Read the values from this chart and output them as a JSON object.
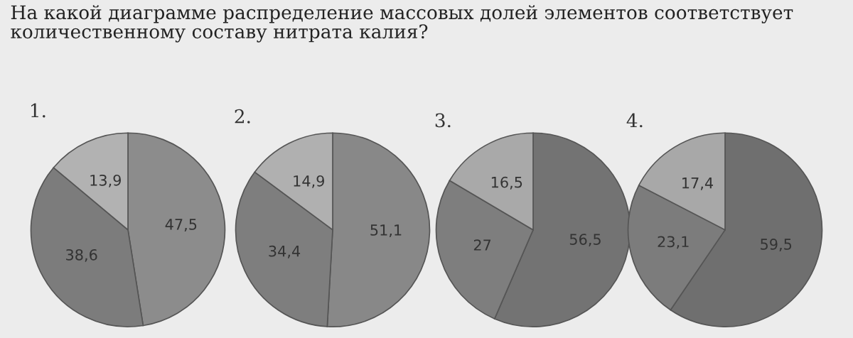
{
  "chart_data": [
    {
      "type": "other",
      "title": "На какой диаграмме распределение массовых долей элементов соответствует\nколичественному составу нитрата калия?"
    },
    {
      "type": "pie",
      "title": "1.",
      "categories": [
        null,
        null,
        null
      ],
      "values": [
        47.5,
        38.6,
        13.9
      ],
      "value_labels": [
        "47,5",
        "38,6",
        "13,9"
      ],
      "colors": [
        "#8c8c8c",
        "#7c7c7c",
        "#b2b2b2"
      ]
    },
    {
      "type": "pie",
      "title": "2.",
      "categories": [
        null,
        null,
        null
      ],
      "values": [
        51.1,
        34.4,
        14.9
      ],
      "value_labels": [
        "51,1",
        "34,4",
        "14,9"
      ],
      "colors": [
        "#888888",
        "#7e7e7e",
        "#b0b0b0"
      ]
    },
    {
      "type": "pie",
      "title": "3.",
      "categories": [
        null,
        null,
        null
      ],
      "values": [
        56.5,
        27,
        16.5
      ],
      "value_labels": [
        "56,5",
        "27",
        "16,5"
      ],
      "colors": [
        "#737373",
        "#7e7e7e",
        "#a9a9a9"
      ]
    },
    {
      "type": "pie",
      "title": "4.",
      "categories": [
        null,
        null,
        null
      ],
      "values": [
        59.5,
        23.1,
        17.4
      ],
      "value_labels": [
        "59,5",
        "23,1",
        "17,4"
      ],
      "colors": [
        "#6f6f6f",
        "#7c7c7c",
        "#a8a8a8"
      ]
    }
  ]
}
